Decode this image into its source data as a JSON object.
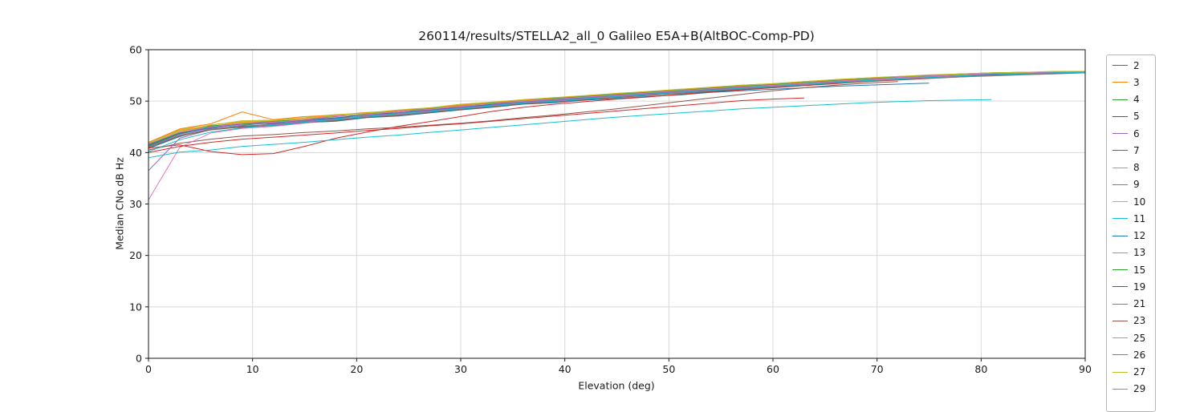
{
  "chart_data": {
    "type": "line",
    "title": "260114/results/STELLA2_all_0 Galileo E5A+B(AltBOC-Comp-PD)",
    "xlabel": "Elevation (deg)",
    "ylabel": "Median CNo dB Hz",
    "xlim": [
      0,
      90
    ],
    "ylim": [
      0,
      60
    ],
    "xticks": [
      0,
      10,
      20,
      30,
      40,
      50,
      60,
      70,
      80,
      90
    ],
    "yticks": [
      0,
      10,
      20,
      30,
      40,
      50,
      60
    ],
    "grid": true,
    "grid_color": "#d9d9d9",
    "spine_color": "#1a1a1a",
    "legend_position": "right-outside",
    "x": [
      0,
      3,
      6,
      9,
      12,
      15,
      18,
      21,
      24,
      27,
      30,
      33,
      36,
      39,
      42,
      45,
      48,
      51,
      54,
      57,
      60,
      63,
      66,
      69,
      72,
      75,
      78,
      81,
      84,
      87,
      90
    ],
    "series": [
      {
        "name": "2",
        "color": "#1f77b4",
        "y": [
          40.8,
          43.1,
          44.7,
          44.9,
          45.2,
          45.8,
          46.1,
          46.8,
          47.1,
          47.7,
          48.3,
          48.8,
          49.4,
          49.7,
          50.2,
          50.5,
          50.9,
          51.2,
          51.7,
          52.0,
          52.3,
          52.6,
          52.9,
          53.1,
          53.3,
          53.5
        ]
      },
      {
        "name": "3",
        "color": "#ff7f0e",
        "y": [
          41.9,
          44.2,
          45.1,
          45.9,
          46.0,
          46.5,
          47.2,
          47.3,
          48.0,
          48.4,
          49.1,
          49.5,
          50.1,
          50.3,
          50.9,
          51.1,
          51.7,
          52.0,
          52.3,
          52.9,
          53.1,
          53.6,
          54.0,
          54.3,
          54.6,
          54.9,
          55.2,
          55.4,
          55.5,
          55.6,
          55.7
        ]
      },
      {
        "name": "4",
        "color": "#2ca02c",
        "y": [
          41.6,
          43.9,
          45.0,
          45.5,
          45.7,
          46.3,
          46.6,
          47.4,
          47.6,
          48.3,
          48.8,
          49.5,
          49.8,
          50.4,
          50.6,
          51.2,
          51.4,
          51.9,
          52.3,
          52.7,
          53.0,
          53.5,
          53.8,
          54.2,
          54.5,
          54.8,
          55.1,
          55.3,
          55.5,
          55.6,
          55.8
        ]
      },
      {
        "name": "5",
        "color": "#d62728",
        "y": [
          40.9,
          41.5,
          40.2,
          39.6,
          39.8,
          41.2,
          42.8,
          44.0,
          45.1,
          46.0,
          47.0,
          48.0,
          48.8,
          49.4,
          49.9,
          50.4,
          50.8,
          51.3,
          51.8,
          52.2,
          52.6,
          53.0,
          53.4,
          53.8,
          54.1,
          54.4,
          54.7,
          55.0,
          55.2,
          55.4,
          55.5
        ]
      },
      {
        "name": "6",
        "color": "#9467bd",
        "y": [
          41.3,
          43.6,
          44.8,
          45.3,
          45.8,
          46.2,
          46.8,
          47.2,
          47.8,
          48.2,
          48.9,
          49.3,
          49.9,
          50.2,
          50.7,
          51.0,
          51.5,
          51.8,
          52.2,
          52.6,
          53.0,
          53.3,
          53.7,
          54.1,
          54.4,
          54.7,
          55.0,
          55.2,
          55.4,
          55.6,
          55.7
        ]
      },
      {
        "name": "7",
        "color": "#8c564b",
        "y": [
          40.5,
          41.8,
          42.6,
          43.2,
          43.5,
          43.9,
          44.2,
          44.6,
          44.9,
          45.3,
          45.7,
          46.2,
          46.8,
          47.3,
          47.9,
          48.5,
          49.2,
          49.9,
          50.6,
          51.3,
          52.0,
          52.6,
          53.1,
          53.5,
          53.8
        ]
      },
      {
        "name": "8",
        "color": "#e377c2",
        "y": [
          30.8,
          41.0,
          43.8,
          44.7,
          45.1,
          45.7,
          46.3,
          46.9,
          47.4,
          47.9,
          48.5,
          49.0,
          49.6,
          50.0,
          50.5,
          50.9,
          51.4,
          51.7,
          52.1,
          52.5,
          52.9,
          53.3,
          53.7,
          54.0,
          54.4,
          54.7,
          55.0,
          55.2,
          55.4,
          55.6,
          55.7
        ]
      },
      {
        "name": "9",
        "color": "#7f7f7f",
        "y": [
          41.2,
          43.4,
          44.6,
          45.1,
          45.5,
          46.1,
          46.4,
          47.1,
          47.5,
          48.1,
          48.6,
          49.1,
          49.7,
          50.1,
          50.6,
          50.9,
          51.3,
          51.7,
          52.1,
          52.5,
          52.8,
          53.2,
          53.6,
          53.9,
          54.3,
          54.6,
          54.9,
          55.1,
          55.3,
          55.5,
          55.6
        ]
      },
      {
        "name": "10",
        "color": "#bcbd22",
        "y": [
          41.8,
          44.5,
          45.3,
          46.2,
          46.3,
          46.8,
          47.4,
          47.6,
          48.2,
          48.6,
          49.3,
          49.7,
          50.2,
          50.6,
          51.0,
          51.4,
          51.8,
          52.2,
          52.5,
          53.0,
          53.3,
          53.7,
          54.1,
          54.4,
          54.7,
          55.0,
          55.2,
          55.4,
          55.6,
          55.7,
          55.8
        ]
      },
      {
        "name": "11",
        "color": "#17becf",
        "y": [
          39.0,
          40.1,
          40.5,
          41.2,
          41.6,
          42.0,
          42.5,
          43.0,
          43.4,
          43.9,
          44.4,
          44.9,
          45.4,
          45.9,
          46.4,
          46.9,
          47.3,
          47.7,
          48.1,
          48.5,
          48.8,
          49.1,
          49.4,
          49.7,
          49.9,
          50.1,
          50.2,
          50.3
        ]
      },
      {
        "name": "12",
        "color": "#1f77b4",
        "y": [
          41.4,
          43.7,
          44.9,
          45.6,
          45.8,
          46.4,
          46.7,
          47.5,
          47.7,
          48.4,
          48.7,
          49.4,
          49.9,
          50.5,
          50.7,
          51.3,
          51.5,
          52.0,
          52.4,
          52.8,
          53.1,
          53.6,
          53.9,
          54.3,
          54.6,
          54.9,
          55.1,
          55.3,
          55.5,
          55.6,
          55.7
        ]
      },
      {
        "name": "13",
        "color": "#ff7f0e",
        "y": [
          42.0,
          44.6,
          45.6,
          47.9,
          46.4,
          47.0,
          47.3,
          47.8,
          48.1,
          48.7,
          49.2,
          49.8,
          50.1,
          50.7,
          50.9,
          51.5,
          51.8,
          52.3,
          52.6,
          53.1,
          53.4,
          53.8,
          54.2,
          54.5,
          54.8,
          55.0,
          55.3,
          55.5,
          55.6,
          55.7,
          55.8
        ]
      },
      {
        "name": "15",
        "color": "#2ca02c",
        "y": [
          41.5,
          43.8,
          45.2,
          45.6,
          46.1,
          46.4,
          47.0,
          47.5,
          48.0,
          48.5,
          49.0,
          49.6,
          50.0,
          50.5,
          50.9,
          51.3,
          51.7,
          52.1,
          52.5,
          52.9,
          53.2,
          53.6,
          54.0,
          54.3,
          54.7,
          55.0,
          55.3,
          55.5,
          55.6,
          55.7,
          55.8
        ]
      },
      {
        "name": "19",
        "color": "#d62728",
        "y": [
          40.0,
          41.2,
          42.0,
          42.6,
          43.0,
          43.4,
          43.8,
          44.3,
          44.7,
          45.2,
          45.6,
          46.1,
          46.6,
          47.1,
          47.6,
          48.1,
          48.6,
          49.1,
          49.6,
          50.1,
          50.4,
          50.6
        ]
      },
      {
        "name": "21",
        "color": "#9467bd",
        "y": [
          36.5,
          42.8,
          44.5,
          45.0,
          45.6,
          46.0,
          46.6,
          47.0,
          47.7,
          48.1,
          48.7,
          49.2,
          49.8,
          50.1,
          50.6,
          51.0,
          51.4,
          51.8,
          52.2,
          52.6,
          52.9,
          53.3,
          53.7,
          54.0,
          54.3,
          54.6,
          54.9,
          55.1,
          55.3,
          55.5,
          55.6
        ]
      },
      {
        "name": "23",
        "color": "#8c564b",
        "y": [
          41.0,
          43.2,
          44.4,
          45.0,
          45.3,
          45.9,
          46.2,
          46.9,
          47.2,
          47.8,
          48.4,
          48.9,
          49.5,
          49.8,
          50.3,
          50.7,
          51.1,
          51.5,
          51.9,
          52.3,
          52.7,
          53.1,
          53.5,
          53.8,
          54.2,
          54.5,
          54.8,
          55.0,
          55.2,
          55.4,
          55.5
        ]
      },
      {
        "name": "25",
        "color": "#e377c2",
        "y": [
          41.7,
          44.0,
          45.0,
          45.7,
          45.9,
          46.4,
          47.1,
          47.4,
          48.0,
          48.4,
          49.0,
          49.5,
          50.0,
          50.4,
          50.8,
          51.2,
          51.6,
          52.0,
          52.4,
          52.8,
          53.1,
          53.5,
          53.9,
          54.2,
          54.6,
          54.9,
          55.1,
          55.4,
          55.5,
          55.7,
          55.8
        ]
      },
      {
        "name": "26",
        "color": "#7f7f7f",
        "y": [
          41.1,
          43.3,
          44.5,
          45.2,
          45.4,
          46.0,
          46.3,
          47.0,
          47.3,
          47.9,
          48.5,
          49.0,
          49.6,
          49.9,
          50.4,
          50.8,
          51.2,
          51.6,
          52.0,
          52.4,
          52.8,
          53.2,
          53.6,
          53.9,
          54.2,
          54.5,
          54.7,
          54.9,
          55.1,
          55.3,
          55.5
        ]
      },
      {
        "name": "27",
        "color": "#bcbd22",
        "y": [
          41.9,
          44.3,
          45.4,
          46.0,
          46.2,
          46.7,
          47.3,
          47.7,
          48.3,
          48.7,
          49.4,
          49.8,
          50.3,
          50.7,
          51.1,
          51.5,
          51.9,
          52.3,
          52.7,
          53.1,
          53.4,
          53.8,
          54.2,
          54.5,
          54.8,
          55.1,
          55.3,
          55.5,
          55.6,
          55.8,
          55.8
        ]
      },
      {
        "name": "29",
        "color": "#17becf",
        "y": [
          40.2,
          42.5,
          44.0,
          44.8,
          45.3,
          45.9,
          46.5,
          47.0,
          47.6,
          48.0,
          48.6,
          49.1,
          49.7,
          50.0,
          50.5,
          50.9,
          51.3,
          51.7,
          52.1,
          52.5,
          52.9,
          53.2,
          53.6,
          54.0,
          54.3,
          54.6,
          54.9,
          55.1,
          55.3,
          55.5,
          55.6
        ]
      }
    ]
  }
}
